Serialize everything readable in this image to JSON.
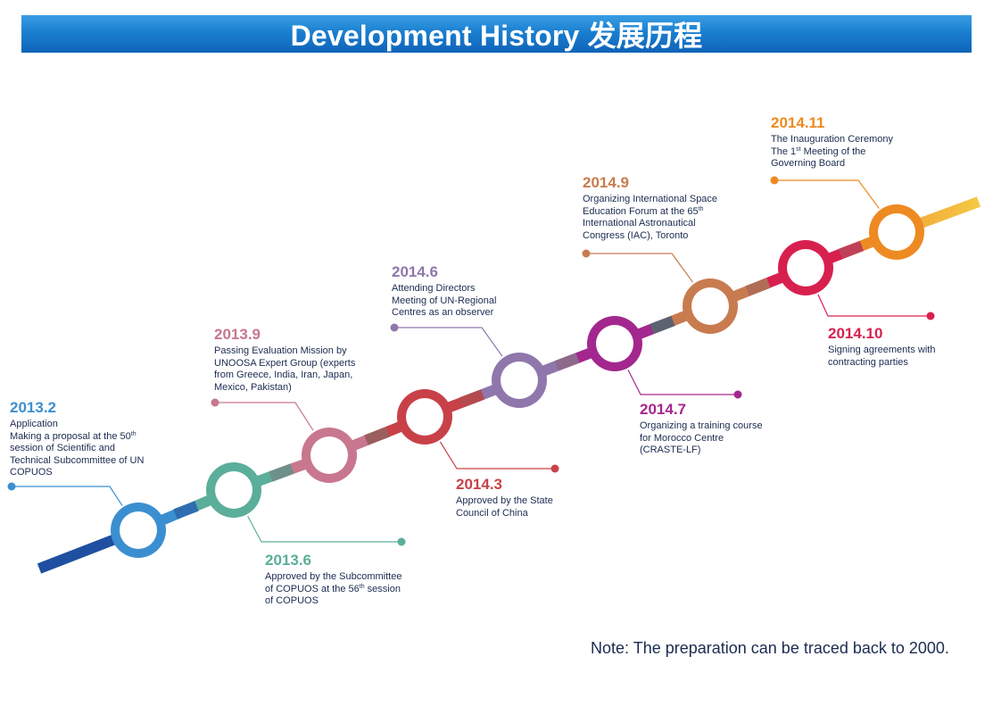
{
  "title": "Development History 发展历程",
  "note": "Note: The preparation can be traced back to 2000.",
  "colors": {
    "banner": "#1a7fd0",
    "text": "#1b2b50",
    "arrow_tip": "#f5c842",
    "arrow_tail": "#1f4fa0"
  },
  "milestones": [
    {
      "date": "2013.2",
      "color": "#3b8fd0",
      "lines": [
        [
          "Application"
        ],
        [
          "Making a proposal at the 50",
          "th",
          ""
        ],
        [
          "session of Scientific and"
        ],
        [
          "Technical Subcommittee of UN"
        ],
        [
          "COPUOS"
        ]
      ]
    },
    {
      "date": "2013.6",
      "color": "#5bae9a",
      "lines": [
        [
          "Approved by the Subcommittee"
        ],
        [
          "of COPUOS at the 56",
          "th",
          " session"
        ],
        [
          "of COPUOS"
        ]
      ]
    },
    {
      "date": "2013.9",
      "color": "#c8778e",
      "lines": [
        [
          "Passing Evaluation Mission by"
        ],
        [
          "UNOOSA Expert Group (experts"
        ],
        [
          "from Greece, India, Iran, Japan,"
        ],
        [
          "Mexico, Pakistan)"
        ]
      ]
    },
    {
      "date": "2014.3",
      "color": "#c94148",
      "lines": [
        [
          "Approved by the State"
        ],
        [
          "Council of China"
        ]
      ]
    },
    {
      "date": "2014.6",
      "color": "#8f77ab",
      "lines": [
        [
          "Attending Directors"
        ],
        [
          "Meeting of UN-Regional"
        ],
        [
          "Centres as an observer"
        ]
      ]
    },
    {
      "date": "2014.7",
      "color": "#a3278e",
      "lines": [
        [
          "Organizing a training course"
        ],
        [
          "for Morocco Centre"
        ],
        [
          "(CRASTE-LF)"
        ]
      ]
    },
    {
      "date": "2014.9",
      "color": "#c87b4f",
      "lines": [
        [
          "Organizing International Space"
        ],
        [
          "Education Forum at the 65",
          "th",
          ""
        ],
        [
          "International Astronautical"
        ],
        [
          "Congress (IAC), Toronto"
        ]
      ]
    },
    {
      "date": "2014.10",
      "color": "#d8204f",
      "lines": [
        [
          "Signing agreements with"
        ],
        [
          "contracting parties"
        ]
      ]
    },
    {
      "date": "2014.11",
      "color": "#ee8a22",
      "lines": [
        [
          "The Inauguration Ceremony"
        ],
        [
          "The 1",
          "st",
          " Meeting of the"
        ],
        [
          "Governing Board"
        ]
      ]
    }
  ]
}
